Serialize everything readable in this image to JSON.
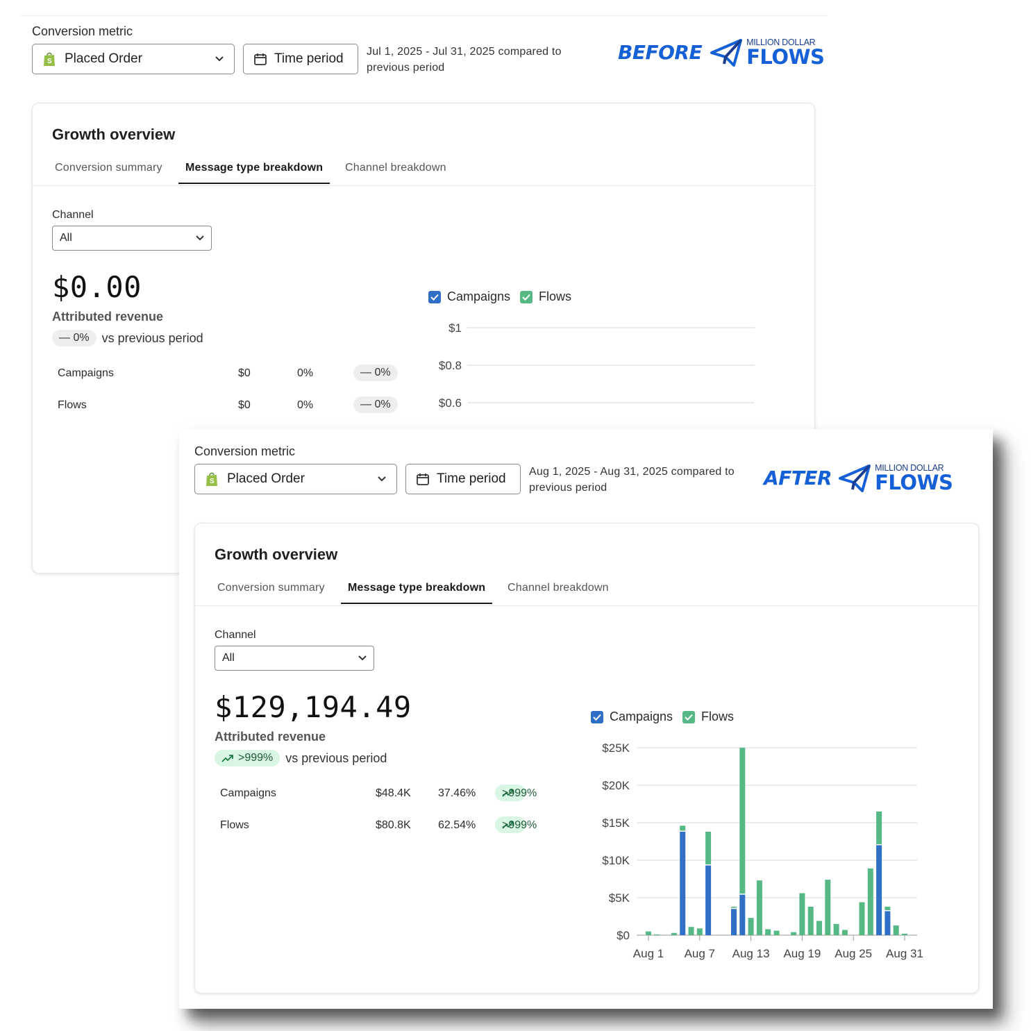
{
  "before": {
    "conversion_metric_label": "Conversion metric",
    "metric_select_value": "Placed Order",
    "time_period_label": "Time period",
    "period_text": "Jul 1, 2025 - Jul 31, 2025 compared to previous period",
    "brand_word": "BEFORE",
    "brand_small": "MILLION DOLLAR",
    "brand_big": "FLOWS",
    "card_title": "Growth overview",
    "tabs": [
      "Conversion summary",
      "Message type breakdown",
      "Channel breakdown"
    ],
    "active_tab": "Message type breakdown",
    "channel_label": "Channel",
    "channel_value": "All",
    "attributed_value": "$0.00",
    "attributed_label": "Attributed revenue",
    "delta": "— 0%",
    "vs_text": "vs previous period",
    "rows": [
      {
        "name": "Campaigns",
        "value": "$0",
        "share": "0%",
        "change": "— 0%"
      },
      {
        "name": "Flows",
        "value": "$0",
        "share": "0%",
        "change": "— 0%"
      }
    ],
    "legend": [
      "Campaigns",
      "Flows"
    ],
    "chart_data": {
      "type": "bar",
      "y_ticks": [
        "$1",
        "$0.8",
        "$0.6"
      ],
      "series": [
        {
          "name": "Campaigns",
          "values": []
        },
        {
          "name": "Flows",
          "values": []
        }
      ]
    }
  },
  "after": {
    "conversion_metric_label": "Conversion metric",
    "metric_select_value": "Placed Order",
    "time_period_label": "Time period",
    "period_text": "Aug 1, 2025 - Aug 31, 2025 compared to previous period",
    "brand_word": "AFTER",
    "brand_small": "MILLION DOLLAR",
    "brand_big": "FLOWS",
    "card_title": "Growth overview",
    "tabs": [
      "Conversion summary",
      "Message type breakdown",
      "Channel breakdown"
    ],
    "active_tab": "Message type breakdown",
    "channel_label": "Channel",
    "channel_value": "All",
    "attributed_value": "$129,194.49",
    "attributed_label": "Attributed revenue",
    "delta": ">999%",
    "vs_text": "vs previous period",
    "rows": [
      {
        "name": "Campaigns",
        "value": "$48.4K",
        "share": "37.46%",
        "change": ">999%"
      },
      {
        "name": "Flows",
        "value": "$80.8K",
        "share": "62.54%",
        "change": ">999%"
      }
    ],
    "legend": [
      "Campaigns",
      "Flows"
    ],
    "chart_data": {
      "type": "bar",
      "stacked": true,
      "y_ticks": [
        "$25K",
        "$20K",
        "$15K",
        "$10K",
        "$5K",
        "$0"
      ],
      "ylim": [
        0,
        25000
      ],
      "x_tick_labels": [
        "Aug 1",
        "Aug 7",
        "Aug 13",
        "Aug 19",
        "Aug 25",
        "Aug 31"
      ],
      "categories": [
        "Aug 1",
        "Aug 2",
        "Aug 3",
        "Aug 4",
        "Aug 5",
        "Aug 6",
        "Aug 7",
        "Aug 8",
        "Aug 9",
        "Aug 10",
        "Aug 11",
        "Aug 12",
        "Aug 13",
        "Aug 14",
        "Aug 15",
        "Aug 16",
        "Aug 17",
        "Aug 18",
        "Aug 19",
        "Aug 20",
        "Aug 21",
        "Aug 22",
        "Aug 23",
        "Aug 24",
        "Aug 25",
        "Aug 26",
        "Aug 27",
        "Aug 28",
        "Aug 29",
        "Aug 30",
        "Aug 31"
      ],
      "series": [
        {
          "name": "Campaigns",
          "color": "#2f6fc6",
          "values": [
            0,
            0,
            0,
            0,
            13800,
            0,
            0,
            9300,
            0,
            0,
            3500,
            5400,
            0,
            0,
            0,
            0,
            0,
            0,
            0,
            0,
            0,
            0,
            0,
            0,
            0,
            0,
            0,
            12000,
            3200,
            0,
            0
          ]
        },
        {
          "name": "Flows",
          "color": "#55b885",
          "values": [
            500,
            100,
            0,
            300,
            800,
            1100,
            900,
            4500,
            0,
            0,
            300,
            19600,
            2300,
            7300,
            800,
            600,
            0,
            400,
            5600,
            3800,
            1900,
            7400,
            1500,
            700,
            0,
            4400,
            8900,
            4500,
            600,
            1300,
            200
          ]
        }
      ],
      "colors": {
        "campaigns": "#2f6fc6",
        "flows": "#55b885"
      }
    }
  }
}
